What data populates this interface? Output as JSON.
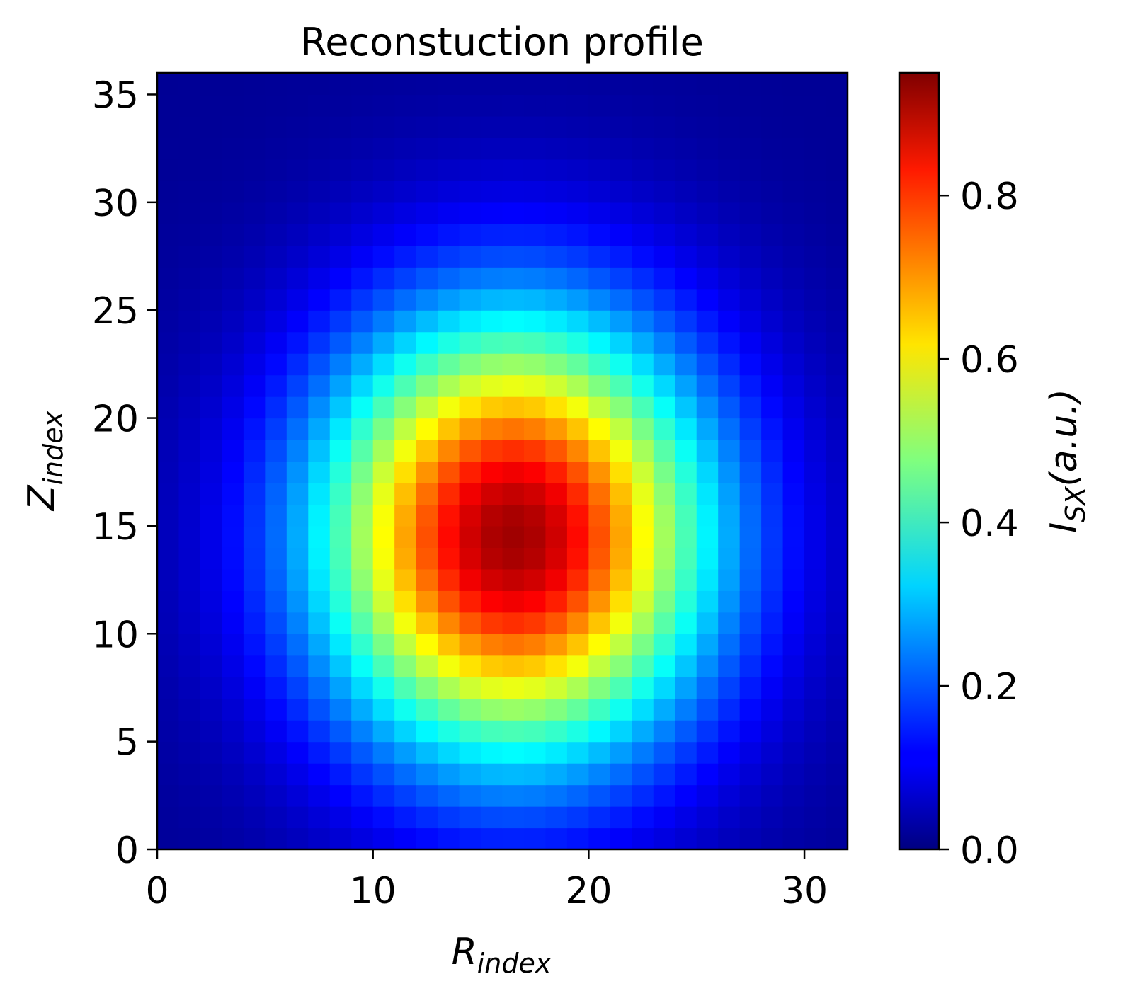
{
  "chart_data": {
    "type": "heatmap",
    "title": "Reconstuction profile",
    "xlabel": {
      "main": "R",
      "sub": "index"
    },
    "ylabel": {
      "main": "Z",
      "sub": "index"
    },
    "colorbar_label": {
      "main": "I",
      "sub": "SX",
      "rest": "(a.u.)"
    },
    "colormap": "jet",
    "grid": false,
    "xlim": [
      0,
      32
    ],
    "ylim": [
      0,
      36
    ],
    "x_ticks": [
      0,
      10,
      20,
      30
    ],
    "y_ticks": [
      0,
      5,
      10,
      15,
      20,
      25,
      30,
      35
    ],
    "colorbar_range": [
      0.0,
      0.95
    ],
    "colorbar_ticks": [
      0.0,
      0.2,
      0.4,
      0.6,
      0.8
    ],
    "colorbar_tick_labels": [
      "0.0",
      "0.2",
      "0.4",
      "0.6",
      "0.8"
    ],
    "x_tick_labels": [
      "0",
      "10",
      "20",
      "30"
    ],
    "y_tick_labels": [
      "0",
      "5",
      "10",
      "15",
      "20",
      "25",
      "30",
      "35"
    ],
    "grid_shape": {
      "columns": 32,
      "rows": 36
    },
    "profile": {
      "peak_value": 0.9,
      "peak_r": 16.5,
      "peak_z": 14.5,
      "plasma_r_range": [
        0,
        32
      ],
      "plasma_z_range": [
        0,
        36
      ]
    }
  }
}
